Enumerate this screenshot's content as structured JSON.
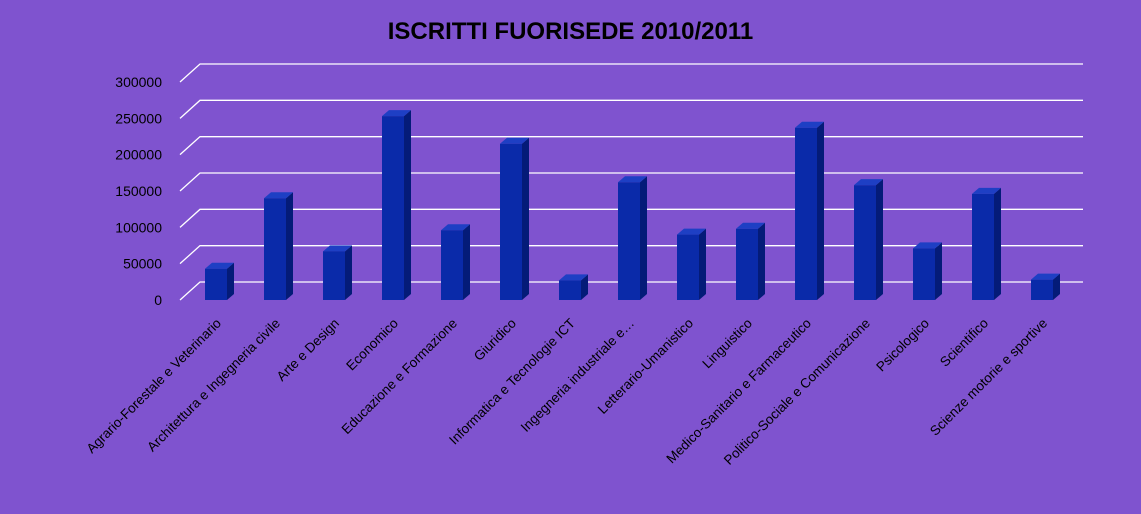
{
  "chart_data": {
    "type": "bar",
    "title": "ISCRITTI FUORISEDE 2010/2011",
    "xlabel": "",
    "ylabel": "",
    "ylim": [
      0,
      300000
    ],
    "yticks": [
      0,
      50000,
      100000,
      150000,
      200000,
      250000,
      300000
    ],
    "ytick_labels": [
      "0",
      "50000",
      "100000",
      "150000",
      "200000",
      "250000",
      "300000"
    ],
    "grid": true,
    "legend": "none",
    "categories": [
      "Agrario-Forestale e Veterinario",
      "Architettura e Ingegneria civile",
      "Arte e Design",
      "Economico",
      "Educazione e Formazione",
      "Giuridico",
      "Informatica e Tecnologie ICT",
      "Ingegneria industriale e…",
      "Letterario-Umanistico",
      "Linguistico",
      "Medico-Sanitario e Farmaceutico",
      "Politico-Sociale e Comunicazione",
      "Psicologico",
      "Scientifico",
      "Scienze motorie e sportive"
    ],
    "values": [
      43000,
      140000,
      67000,
      253000,
      96000,
      215000,
      27000,
      162000,
      90000,
      98000,
      237000,
      158000,
      71000,
      146000,
      28000
    ],
    "colors": {
      "background": "#7f53cf",
      "bar_front": "#0a2aa9",
      "bar_side": "#041b78",
      "bar_top": "#1e3fc4",
      "grid": "#ffffff"
    }
  }
}
